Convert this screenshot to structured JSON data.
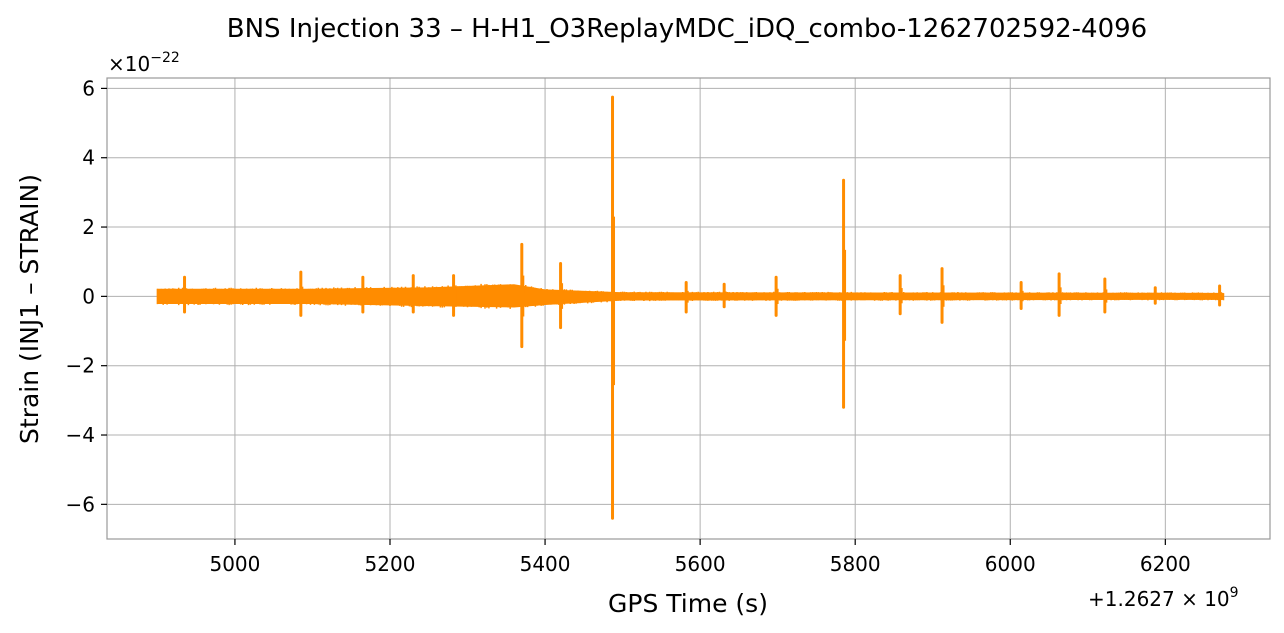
{
  "chart_data": {
    "type": "line",
    "title": "BNS Injection 33 – H-H1_O3ReplayMDC_iDQ_combo-1262702592-4096",
    "xlabel": "GPS Time (s)",
    "ylabel": "Strain (INJ1 – STRAIN)",
    "x_offset_text": "+1.2627 × 10",
    "x_offset_exponent": "9",
    "y_multiplier_text": "×10",
    "y_multiplier_exponent": "−22",
    "xlim": [
      4835,
      6335
    ],
    "ylim": [
      -7.0,
      6.3
    ],
    "xticks": [
      5000,
      5200,
      5400,
      5600,
      5800,
      6000,
      6200
    ],
    "xtick_labels": [
      "5000",
      "5200",
      "5400",
      "5600",
      "5800",
      "6000",
      "6200"
    ],
    "yticks": [
      -6,
      -4,
      -2,
      0,
      2,
      4,
      6
    ],
    "ytick_labels": [
      "−6",
      "−4",
      "−2",
      "0",
      "2",
      "4",
      "6"
    ],
    "grid": true,
    "line_color": "#ff8c00",
    "x_range": [
      4900,
      6275
    ],
    "noise_band": [
      {
        "x": 4900,
        "upper": 0.22,
        "lower": -0.22
      },
      {
        "x": 5100,
        "upper": 0.22,
        "lower": -0.22
      },
      {
        "x": 5250,
        "upper": 0.26,
        "lower": -0.28
      },
      {
        "x": 5360,
        "upper": 0.35,
        "lower": -0.32
      },
      {
        "x": 5400,
        "upper": 0.2,
        "lower": -0.25
      },
      {
        "x": 5500,
        "upper": 0.12,
        "lower": -0.12
      },
      {
        "x": 6275,
        "upper": 0.1,
        "lower": -0.1
      }
    ],
    "spikes": [
      {
        "x": 4935,
        "max": 0.55,
        "min": -0.45
      },
      {
        "x": 5085,
        "max": 0.7,
        "min": -0.55
      },
      {
        "x": 5165,
        "max": 0.55,
        "min": -0.45
      },
      {
        "x": 5230,
        "max": 0.6,
        "min": -0.45
      },
      {
        "x": 5282,
        "max": 0.6,
        "min": -0.55
      },
      {
        "x": 5370,
        "max": 1.5,
        "min": -1.45
      },
      {
        "x": 5420,
        "max": 0.95,
        "min": -0.9
      },
      {
        "x": 5487,
        "max": 5.75,
        "min": -6.4
      },
      {
        "x": 5582,
        "max": 0.4,
        "min": -0.45
      },
      {
        "x": 5631,
        "max": 0.35,
        "min": -0.3
      },
      {
        "x": 5698,
        "max": 0.55,
        "min": -0.55
      },
      {
        "x": 5785,
        "max": 3.35,
        "min": -3.2
      },
      {
        "x": 5858,
        "max": 0.6,
        "min": -0.5
      },
      {
        "x": 5912,
        "max": 0.8,
        "min": -0.75
      },
      {
        "x": 6014,
        "max": 0.4,
        "min": -0.35
      },
      {
        "x": 6063,
        "max": 0.65,
        "min": -0.55
      },
      {
        "x": 6122,
        "max": 0.5,
        "min": -0.45
      },
      {
        "x": 6187,
        "max": 0.25,
        "min": -0.2
      },
      {
        "x": 6270,
        "max": 0.3,
        "min": -0.25
      }
    ]
  }
}
